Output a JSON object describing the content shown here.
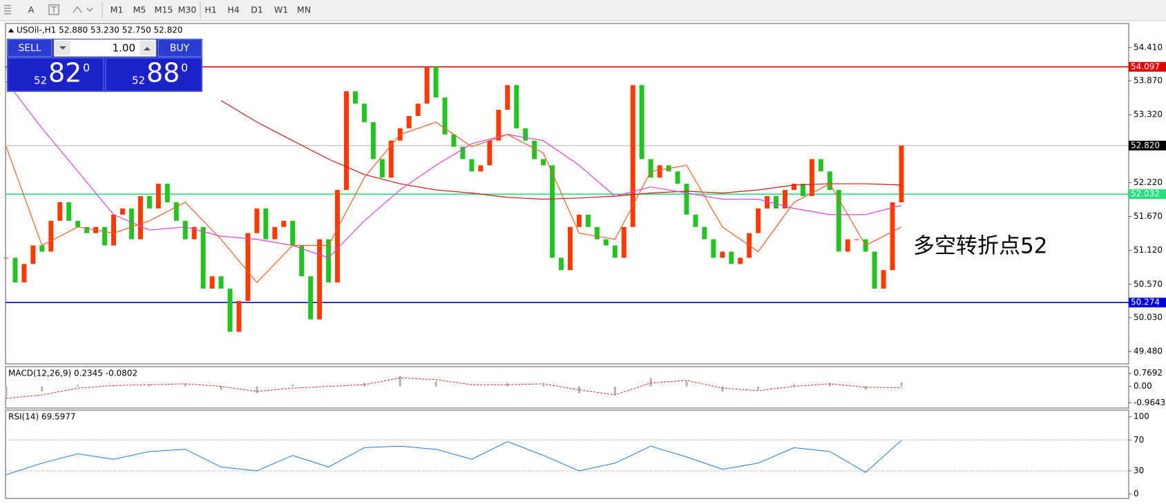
{
  "toolbar": {
    "items": [
      "A",
      "M1",
      "M5",
      "M15",
      "M30",
      "H1",
      "H4",
      "D1",
      "W1",
      "MN"
    ]
  },
  "trade_panel": {
    "sell": "SELL",
    "lots": "1.00",
    "buy": "BUY",
    "bid": {
      "big": "52",
      "main": "82",
      "small": "0"
    },
    "ask": {
      "big": "52",
      "main": "88",
      "small": "0"
    }
  },
  "chart_data": [
    {
      "type": "candlestick",
      "title": "USOil-,H1  52.880 53.230 52.750 52.820",
      "closes": [
        51.0,
        50.6,
        50.9,
        51.2,
        51.1,
        51.6,
        51.9,
        51.6,
        51.5,
        51.4,
        51.5,
        51.2,
        51.7,
        51.8,
        51.3,
        52.0,
        51.8,
        52.2,
        51.9,
        51.6,
        51.3,
        51.5,
        50.5,
        50.7,
        50.5,
        49.8,
        50.3,
        51.4,
        51.8,
        51.3,
        51.5,
        51.6,
        51.2,
        50.7,
        50.0,
        51.3,
        50.6,
        52.1,
        53.7,
        53.5,
        53.2,
        52.6,
        52.3,
        52.9,
        53.1,
        53.3,
        53.5,
        54.1,
        53.6,
        53.0,
        52.8,
        52.6,
        52.4,
        52.5,
        52.9,
        53.4,
        53.8,
        53.1,
        52.9,
        52.6,
        52.5,
        51.0,
        50.8,
        51.5,
        51.7,
        51.5,
        51.3,
        51.2,
        51.0,
        51.5,
        53.8,
        52.6,
        52.3,
        52.5,
        52.4,
        52.2,
        51.7,
        51.5,
        51.3,
        51.0,
        51.1,
        50.9,
        51.0,
        51.4,
        51.8,
        52.0,
        51.8,
        52.1,
        52.2,
        52.0,
        52.6,
        52.4,
        52.1,
        51.1,
        51.3,
        51.3,
        51.1,
        50.5,
        50.8,
        51.9,
        52.82
      ],
      "up_color": "#ff3a00",
      "down_color": "#22c422",
      "moving_averages": [
        {
          "color": "#d01818",
          "values": [
            null,
            null,
            null,
            null,
            null,
            null,
            53.55,
            53.2,
            52.9,
            52.6,
            52.35,
            52.2,
            52.1,
            52.05,
            51.98,
            51.95,
            51.97,
            52.0,
            52.05,
            52.08,
            52.05,
            52.1,
            52.18,
            52.2,
            52.2,
            52.18
          ]
        },
        {
          "color": "#e040e0",
          "values": [
            53.86,
            53.1,
            52.4,
            51.7,
            51.45,
            51.5,
            51.35,
            51.3,
            51.2,
            51.0,
            51.6,
            52.1,
            52.5,
            52.85,
            53.0,
            52.9,
            52.5,
            52.0,
            52.15,
            52.05,
            51.95,
            51.95,
            51.8,
            51.7,
            51.7,
            51.85
          ]
        },
        {
          "color": "#ff5a1e",
          "values": [
            52.8,
            51.2,
            51.5,
            51.4,
            51.6,
            51.9,
            51.3,
            50.6,
            51.2,
            51.2,
            52.3,
            53.0,
            53.2,
            52.8,
            53.0,
            52.7,
            51.4,
            51.3,
            52.4,
            52.5,
            51.5,
            51.1,
            51.9,
            52.2,
            51.2,
            51.5
          ]
        }
      ],
      "ylim": [
        49.28,
        54.8
      ],
      "yticks": [
        {
          "value": 54.41,
          "label": "54.410"
        },
        {
          "value": 53.87,
          "label": "53.870"
        },
        {
          "value": 53.32,
          "label": "53.320"
        },
        {
          "value": 52.22,
          "label": "52.220"
        },
        {
          "value": 51.67,
          "label": "51.670"
        },
        {
          "value": 51.12,
          "label": "51.120"
        },
        {
          "value": 50.57,
          "label": "50.570"
        },
        {
          "value": 50.03,
          "label": "50.030"
        },
        {
          "value": 49.48,
          "label": "49.480"
        }
      ],
      "levels": [
        {
          "value": 54.097,
          "color": "#e00000"
        },
        {
          "value": 52.032,
          "color": "#22e07a"
        },
        {
          "value": 50.274,
          "color": "#0000e0"
        },
        {
          "value": {
            "value": 52.82,
            "label": "52.820"
          },
          "color": "#000000"
        }
      ],
      "annotation": {
        "text": "多空转折点52",
        "color": "#ff1a1a"
      }
    },
    {
      "type": "macd",
      "title": "MACD(12,26,9) 0.2345 -0.0802",
      "histogram": [
        -0.6,
        -0.3,
        0.1,
        0.05,
        0.1,
        0.15,
        -0.2,
        -0.4,
        0.1,
        0.0,
        0.2,
        0.6,
        0.3,
        0.0,
        0.2,
        0.1,
        -0.4,
        -0.5,
        0.5,
        0.3,
        -0.3,
        -0.2,
        0.1,
        0.2,
        -0.2,
        0.23
      ],
      "signal": [
        -0.7,
        -0.5,
        -0.1,
        0.05,
        0.1,
        0.15,
        0.0,
        -0.3,
        -0.1,
        0.0,
        0.1,
        0.5,
        0.4,
        0.1,
        0.1,
        0.15,
        -0.2,
        -0.5,
        0.2,
        0.35,
        -0.1,
        -0.25,
        0.0,
        0.15,
        -0.05,
        -0.08
      ],
      "color": "#b0b0b0",
      "signal_color": "#e02020",
      "ylim": [
        -1.27,
        1.16
      ],
      "yticks": [
        0.7692,
        {
          "value": 0,
          "label": "0.00"
        },
        -0.9643
      ]
    },
    {
      "type": "rsi",
      "title": "RSI(14) 69.5977",
      "values": [
        25,
        40,
        52,
        45,
        55,
        58,
        35,
        30,
        50,
        35,
        60,
        62,
        58,
        45,
        68,
        50,
        30,
        40,
        62,
        48,
        32,
        40,
        60,
        55,
        28,
        69.6
      ],
      "color": "#1e78dc",
      "ylim": [
        -5.8,
        108.7
      ],
      "yticks": [
        100,
        70,
        30,
        0
      ],
      "levels": [
        70,
        30
      ]
    }
  ]
}
